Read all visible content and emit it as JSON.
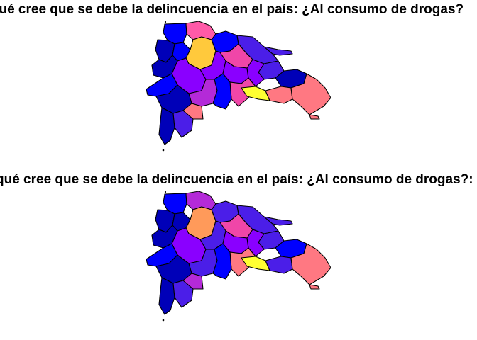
{
  "maps": [
    {
      "title": "qué cree que se debe la delincuencia en el país: ¿Al consumo de drogas?",
      "palette": {
        "dark_blue": "#0000b8",
        "blue": "#0000ff",
        "indigo": "#4b1ee8",
        "violet": "#8a00ff",
        "purple": "#b42ad8",
        "pink": "#f046a8",
        "salmon": "#ff7882",
        "orange": "#ff9a5a",
        "gold": "#ffc93c",
        "yellow": "#ffff32"
      },
      "regions": [
        {
          "id": "r01",
          "color": "#0000ff"
        },
        {
          "id": "r02",
          "color": "#0000b8"
        },
        {
          "id": "r03",
          "color": "#0000ff"
        },
        {
          "id": "r04",
          "color": "#ff5aa8"
        },
        {
          "id": "r05",
          "color": "#ffc93c"
        },
        {
          "id": "r06",
          "color": "#0000ff"
        },
        {
          "id": "r07",
          "color": "#4b1ee8"
        },
        {
          "id": "r08",
          "color": "#f046a8"
        },
        {
          "id": "r09",
          "color": "#8a00ff"
        },
        {
          "id": "r10",
          "color": "#0000b8"
        },
        {
          "id": "r11",
          "color": "#8a00ff"
        },
        {
          "id": "r12",
          "color": "#8a00ff"
        },
        {
          "id": "r13",
          "color": "#4b1ee8"
        },
        {
          "id": "r14",
          "color": "#8a00ff"
        },
        {
          "id": "r15",
          "color": "#0000b8"
        },
        {
          "id": "r16",
          "color": "#b42ad8"
        },
        {
          "id": "r17",
          "color": "#0000ff"
        },
        {
          "id": "r18",
          "color": "#0000b8"
        },
        {
          "id": "r19",
          "color": "#f046a8"
        },
        {
          "id": "r20",
          "color": "#ffff32"
        },
        {
          "id": "r21",
          "color": "#ff7882"
        },
        {
          "id": "r22",
          "color": "#0000ff"
        },
        {
          "id": "r23",
          "color": "#0000b8"
        },
        {
          "id": "r24",
          "color": "#4b1ee8"
        },
        {
          "id": "r25",
          "color": "#ff7882"
        },
        {
          "id": "r26",
          "color": "#ff7882"
        }
      ]
    },
    {
      "title": "qué cree que se debe la delincuencia en el país: ¿Al consumo de drogas?:",
      "palette": {
        "dark_blue": "#0000b8",
        "blue": "#0000ff",
        "indigo": "#4b1ee8",
        "violet": "#8a00ff",
        "purple": "#b42ad8",
        "pink": "#f046a8",
        "salmon": "#ff7882",
        "orange": "#ff9a5a",
        "gold": "#ffc93c",
        "yellow": "#ffff32"
      },
      "regions": [
        {
          "id": "r01",
          "color": "#0000ff"
        },
        {
          "id": "r02",
          "color": "#0000b8"
        },
        {
          "id": "r03",
          "color": "#0000b8"
        },
        {
          "id": "r04",
          "color": "#b42ad8"
        },
        {
          "id": "r05",
          "color": "#ff9a5a"
        },
        {
          "id": "r06",
          "color": "#4b1ee8"
        },
        {
          "id": "r07",
          "color": "#4b1ee8"
        },
        {
          "id": "r08",
          "color": "#f046a8"
        },
        {
          "id": "r09",
          "color": "#8a00ff"
        },
        {
          "id": "r10",
          "color": "#0000b8"
        },
        {
          "id": "r11",
          "color": "#4b1ee8"
        },
        {
          "id": "r12",
          "color": "#8a00ff"
        },
        {
          "id": "r13",
          "color": "#4b1ee8"
        },
        {
          "id": "r14",
          "color": "#8a00ff"
        },
        {
          "id": "r15",
          "color": "#0000ff"
        },
        {
          "id": "r16",
          "color": "#4b1ee8"
        },
        {
          "id": "r17",
          "color": "#0000ff"
        },
        {
          "id": "r18",
          "color": "#0000b8"
        },
        {
          "id": "r19",
          "color": "#ff7882"
        },
        {
          "id": "r20",
          "color": "#ffff32"
        },
        {
          "id": "r21",
          "color": "#4b1ee8"
        },
        {
          "id": "r22",
          "color": "#0000ff"
        },
        {
          "id": "r23",
          "color": "#0000b8"
        },
        {
          "id": "r24",
          "color": "#4b1ee8"
        },
        {
          "id": "r25",
          "color": "#b42ad8"
        },
        {
          "id": "r26",
          "color": "#ff7882"
        }
      ]
    }
  ]
}
